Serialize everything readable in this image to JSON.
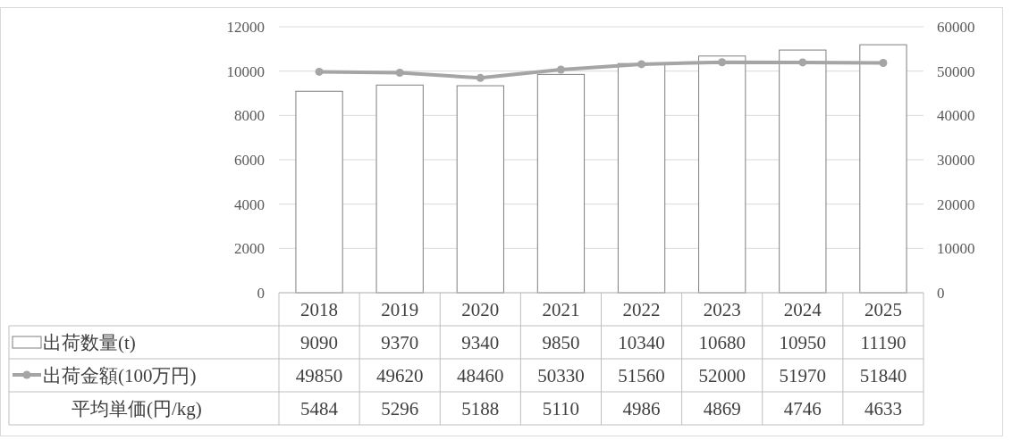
{
  "chart_data": {
    "type": "bar",
    "categories": [
      "2018",
      "2019",
      "2020",
      "2021",
      "2022",
      "2023",
      "2024",
      "2025"
    ],
    "series": [
      {
        "name": "出荷数量(t)",
        "color": "#ffffff",
        "values": [
          9090,
          9370,
          9340,
          9850,
          10340,
          10680,
          10950,
          11190
        ]
      },
      {
        "name": "出荷金額(100万円)",
        "type": "line",
        "axis": "y2",
        "color": "#a5a5a5",
        "marker": "circle",
        "values": [
          49850,
          49620,
          48460,
          50330,
          51560,
          52000,
          51970,
          51840
        ]
      }
    ],
    "annotations": [
      "平均単価(円/kg)",
      "5484",
      "5296",
      "5188",
      "5110",
      "4986",
      "4869",
      "4746",
      "4633"
    ],
    "ylim": [
      0,
      12000
    ],
    "yticks": [
      0,
      2000,
      4000,
      6000,
      8000,
      10000,
      12000
    ],
    "y2lim": [
      0,
      60000
    ],
    "y2ticks": [
      0,
      10000,
      20000,
      30000,
      40000,
      50000,
      60000
    ],
    "grid": "y",
    "data_labels": true,
    "legend": "bottom"
  }
}
